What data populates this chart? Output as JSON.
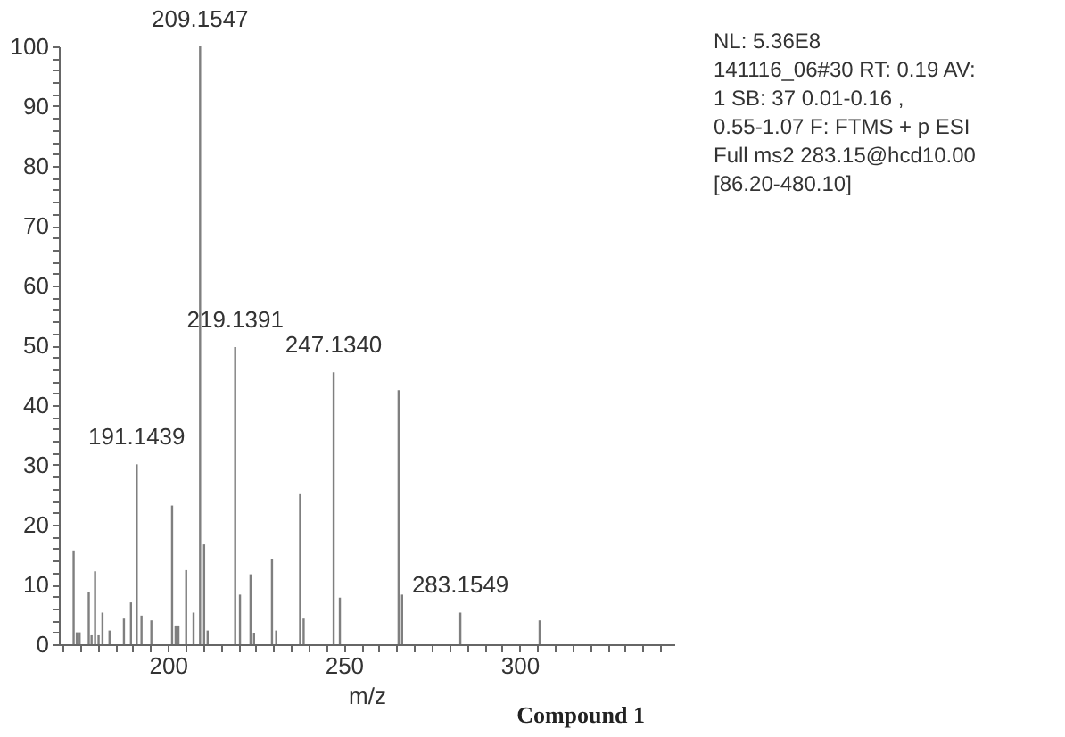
{
  "chart_data": {
    "type": "bar",
    "xlabel": "m/z",
    "x": [
      173.2,
      174.1,
      174.9,
      177.5,
      178.3,
      179.3,
      180.3,
      181.4,
      183.4,
      187.5,
      189.5,
      191.1439,
      192.5,
      195.3,
      201.2,
      202.2,
      203,
      205.2,
      207.3,
      209.1547,
      210.3,
      211.3,
      219.1391,
      220.5,
      223.5,
      224.5,
      229.6,
      230.8,
      237.6,
      238.6,
      247.134,
      248.9,
      265.6,
      266.6,
      283.1549,
      305.7
    ],
    "series": [
      {
        "color": "#7f7f7f",
        "values": [
          15.7,
          2,
          2,
          8.7,
          1.5,
          12.2,
          1.5,
          5.3,
          2.3,
          4.3,
          7,
          30.1,
          4.8,
          4,
          23.2,
          3,
          3,
          12.4,
          5.3,
          100,
          16.7,
          2.3,
          49.7,
          8.3,
          11.7,
          1.8,
          14.2,
          2.3,
          25.1,
          4.3,
          45.5,
          7.8,
          42.5,
          8.3,
          5.3,
          4
        ]
      }
    ],
    "xlim": [
      169,
      344
    ],
    "xticks": [
      {
        "value": 170,
        "label": null
      },
      {
        "value": 175,
        "label": null
      },
      {
        "value": 180,
        "label": null
      },
      {
        "value": 185,
        "label": null
      },
      {
        "value": 190,
        "label": null
      },
      {
        "value": 195,
        "label": null
      },
      200,
      {
        "value": 205,
        "label": null
      },
      {
        "value": 210,
        "label": null
      },
      {
        "value": 215,
        "label": null
      },
      {
        "value": 220,
        "label": null
      },
      {
        "value": 225,
        "label": null
      },
      {
        "value": 230,
        "label": null
      },
      {
        "value": 235,
        "label": null
      },
      {
        "value": 240,
        "label": null
      },
      {
        "value": 245,
        "label": null
      },
      250,
      {
        "value": 255,
        "label": null
      },
      {
        "value": 260,
        "label": null
      },
      {
        "value": 265,
        "label": null
      },
      {
        "value": 270,
        "label": null
      },
      {
        "value": 275,
        "label": null
      },
      {
        "value": 280,
        "label": null
      },
      {
        "value": 285,
        "label": null
      },
      {
        "value": 290,
        "label": null
      },
      {
        "value": 295,
        "label": null
      },
      300,
      {
        "value": 305,
        "label": null
      },
      {
        "value": 310,
        "label": null
      },
      {
        "value": 315,
        "label": null
      },
      {
        "value": 320,
        "label": null
      },
      {
        "value": 325,
        "label": null
      },
      {
        "value": 330,
        "label": null
      },
      {
        "value": 335,
        "label": null
      },
      {
        "value": 340,
        "label": null
      }
    ],
    "ylim": [
      0,
      100
    ],
    "yticks": [
      0,
      {
        "value": 2,
        "label": null
      },
      {
        "value": 4,
        "label": null
      },
      {
        "value": 6,
        "label": null
      },
      {
        "value": 8,
        "label": null
      },
      10,
      {
        "value": 12,
        "label": null
      },
      {
        "value": 14,
        "label": null
      },
      {
        "value": 16,
        "label": null
      },
      {
        "value": 18,
        "label": null
      },
      20,
      {
        "value": 22,
        "label": null
      },
      {
        "value": 24,
        "label": null
      },
      {
        "value": 26,
        "label": null
      },
      {
        "value": 28,
        "label": null
      },
      30,
      {
        "value": 32,
        "label": null
      },
      {
        "value": 34,
        "label": null
      },
      {
        "value": 36,
        "label": null
      },
      {
        "value": 38,
        "label": null
      },
      40,
      {
        "value": 42,
        "label": null
      },
      {
        "value": 44,
        "label": null
      },
      {
        "value": 46,
        "label": null
      },
      {
        "value": 48,
        "label": null
      },
      50,
      {
        "value": 52,
        "label": null
      },
      {
        "value": 54,
        "label": null
      },
      {
        "value": 56,
        "label": null
      },
      {
        "value": 58,
        "label": null
      },
      60,
      {
        "value": 62,
        "label": null
      },
      {
        "value": 64,
        "label": null
      },
      {
        "value": 66,
        "label": null
      },
      {
        "value": 68,
        "label": null
      },
      70,
      {
        "value": 72,
        "label": null
      },
      {
        "value": 74,
        "label": null
      },
      {
        "value": 76,
        "label": null
      },
      {
        "value": 78,
        "label": null
      },
      80,
      {
        "value": 82,
        "label": null
      },
      {
        "value": 84,
        "label": null
      },
      {
        "value": 86,
        "label": null
      },
      {
        "value": 88,
        "label": null
      },
      90,
      {
        "value": 92,
        "label": null
      },
      {
        "value": 94,
        "label": null
      },
      {
        "value": 96,
        "label": null
      },
      {
        "value": 98,
        "label": null
      },
      100
    ],
    "annotations": [
      {
        "text": "191.1439",
        "x": 191.1439,
        "y": 30.1
      },
      {
        "text": "209.1547",
        "x": 209.1547,
        "y": 100
      },
      {
        "text": "219.1391",
        "x": 219.1391,
        "y": 49.7
      },
      {
        "text": "247.1340",
        "x": 247.134,
        "y": 45.5
      },
      {
        "text": "283.1549",
        "x": 283.1549,
        "y": 5.3
      },
      "NL: 5.36E8",
      "141116_06#30  RT: 0.19  AV:",
      "1 SB: 37  0.01-0.16  ,",
      "0.55-1.07 F: FTMS + p ESI",
      "Full ms2 283.15@hcd10.00",
      "[86.20-480.10]",
      "Compound 1"
    ]
  }
}
